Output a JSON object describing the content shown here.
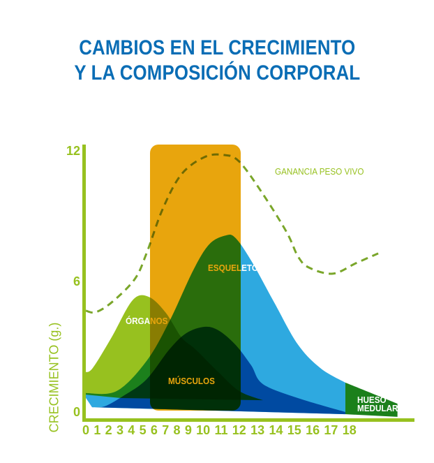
{
  "title": {
    "line1": "CAMBIOS EN EL CRECIMIENTO",
    "line2": "Y LA COMPOSICIÓN CORPORAL"
  },
  "colors": {
    "title": "#0a6db5",
    "axis": "#97c11f",
    "organos": "#97c11f",
    "esqueleto": "#2ea9e0",
    "musculos": "#0070b8",
    "hueso": "#1b801b",
    "highlight": "#e8a50d",
    "ganancia": "#7aa62a"
  },
  "chart_data": {
    "type": "area",
    "title": "CAMBIOS EN EL CRECIMIENTO Y LA COMPOSICIÓN CORPORAL",
    "xlabel": "",
    "ylabel": "CRECIMIENTO (g.)",
    "xlim": [
      0,
      18
    ],
    "ylim": [
      0,
      12
    ],
    "x_ticks": [
      "0",
      "1",
      "2",
      "3",
      "4",
      "5",
      "6",
      "7",
      "8",
      "9",
      "10",
      "11",
      "12",
      "13",
      "14",
      "15",
      "16",
      "17",
      "18"
    ],
    "y_ticks": [
      "0",
      "6",
      "12"
    ],
    "highlight_range_x": [
      3.4,
      8.6
    ],
    "series": [
      {
        "name": "ÓRGANOS",
        "kind": "area",
        "top": [
          [
            -0.25,
            1.83
          ],
          [
            0.2,
            2.02
          ],
          [
            1.31,
            3.43
          ],
          [
            2.54,
            5.13
          ],
          [
            3.48,
            5.29
          ],
          [
            4.47,
            4.58
          ],
          [
            5.41,
            3.43
          ],
          [
            6.23,
            2.88
          ],
          [
            7.58,
            1.83
          ],
          [
            8.81,
            0.96
          ],
          [
            10.2,
            0.54
          ]
        ],
        "bottom": [
          [
            1.84,
            0.64
          ],
          [
            -0.25,
            0.8
          ]
        ]
      },
      {
        "name": "ESQUELETO",
        "kind": "area",
        "top": [
          [
            -0.25,
            0.87
          ],
          [
            1.6,
            0.96
          ],
          [
            3.36,
            2.34
          ],
          [
            4.71,
            4.17
          ],
          [
            6.1,
            6.5
          ],
          [
            7.05,
            7.7
          ],
          [
            8.0,
            8.1
          ],
          [
            8.57,
            8.0
          ],
          [
            9.5,
            6.96
          ],
          [
            10.86,
            5.03
          ],
          [
            12.25,
            3.1
          ],
          [
            13.6,
            2.0
          ],
          [
            15.04,
            1.35
          ]
        ],
        "bottom": [
          [
            15.04,
            -0.1
          ],
          [
            0.16,
            0.22
          ],
          [
            -0.25,
            0.7
          ]
        ]
      },
      {
        "name": "MÚSCULOS",
        "kind": "area",
        "top": [
          [
            0.16,
            0.22
          ],
          [
            0.9,
            0.26
          ],
          [
            2.0,
            0.74
          ],
          [
            3.36,
            1.5
          ],
          [
            4.71,
            2.88
          ],
          [
            5.7,
            3.62
          ],
          [
            6.76,
            3.91
          ],
          [
            7.58,
            3.75
          ],
          [
            8.57,
            3.1
          ],
          [
            9.5,
            2.15
          ],
          [
            10.2,
            1.28
          ],
          [
            12.25,
            0.64
          ],
          [
            15.04,
            0.0
          ]
        ],
        "bottom": [
          [
            15.04,
            -0.1
          ],
          [
            0.16,
            0.22
          ]
        ]
      },
      {
        "name": "HUESO MEDULAR",
        "kind": "area",
        "top": [
          [
            15.04,
            1.35
          ],
          [
            18.1,
            0.38
          ]
        ],
        "bottom": [
          [
            18.1,
            -0.22
          ],
          [
            15.04,
            -0.1
          ]
        ]
      },
      {
        "name": "GANANCIA PESO VIVO",
        "kind": "dashed-line",
        "points": [
          [
            -0.2,
            4.65
          ],
          [
            0.37,
            4.58
          ],
          [
            1.31,
            5.03
          ],
          [
            2.66,
            6.09
          ],
          [
            3.36,
            7.28
          ],
          [
            4.3,
            9.3
          ],
          [
            5.4,
            10.9
          ],
          [
            6.76,
            11.7
          ],
          [
            7.87,
            11.8
          ],
          [
            8.8,
            11.5
          ],
          [
            10.2,
            10.0
          ],
          [
            11.6,
            8.24
          ],
          [
            12.25,
            7.15
          ],
          [
            12.9,
            6.63
          ],
          [
            14.3,
            6.35
          ],
          [
            15.66,
            6.83
          ],
          [
            16.97,
            7.28
          ]
        ]
      }
    ],
    "labels": {
      "organos": "ÓRGANOS",
      "esqueleto": "ESQUELETO",
      "musculos": "MÚSCULOS",
      "hueso_1": "HUESO",
      "hueso_2": "MEDULAR",
      "ganancia": "GANANCIA PESO VIVO"
    }
  }
}
